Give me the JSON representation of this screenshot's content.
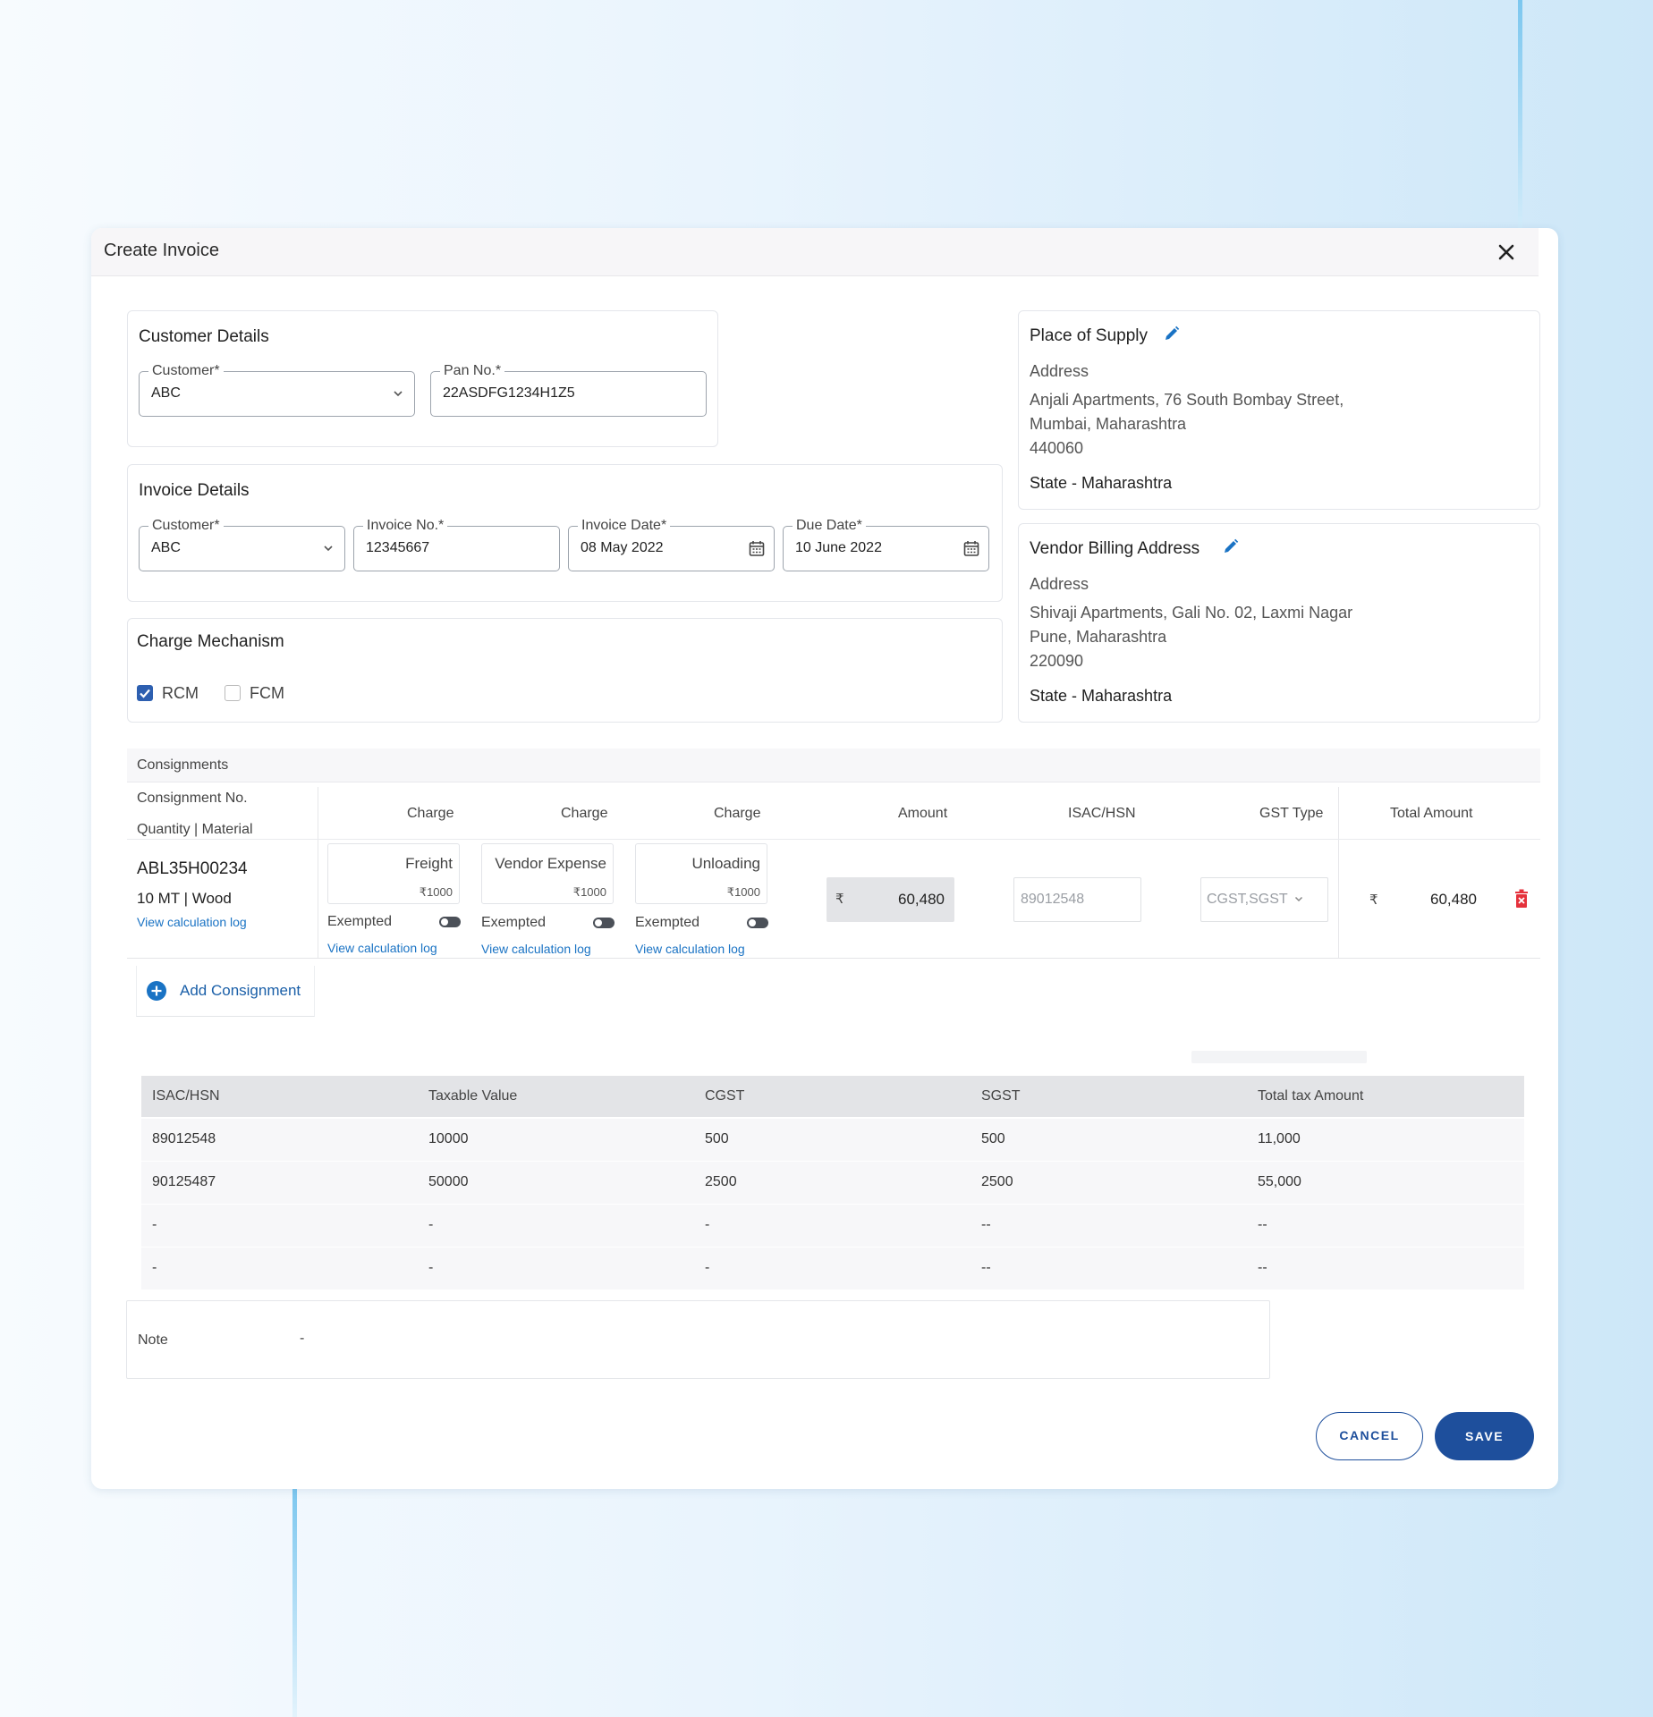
{
  "modal": {
    "title": "Create Invoice"
  },
  "customer_details": {
    "title": "Customer Details",
    "customer_label": "Customer*",
    "customer_value": "ABC",
    "pan_label": "Pan No.*",
    "pan_value": "22ASDFG1234H1Z5"
  },
  "invoice_details": {
    "title": "Invoice Details",
    "customer_label": "Customer*",
    "customer_value": "ABC",
    "invoice_no_label": "Invoice No.*",
    "invoice_no_value": "12345667",
    "invoice_date_label": "Invoice Date*",
    "invoice_date_value": "08 May 2022",
    "due_date_label": "Due Date*",
    "due_date_value": "10 June 2022"
  },
  "charge_mechanism": {
    "title": "Charge Mechanism",
    "options": [
      {
        "label": "RCM",
        "checked": true
      },
      {
        "label": "FCM",
        "checked": false
      }
    ]
  },
  "place_of_supply": {
    "title": "Place of Supply",
    "address_label": "Address",
    "lines": [
      "Anjali Apartments, 76 South Bombay Street,",
      "Mumbai, Maharashtra",
      "440060"
    ],
    "state": "State - Maharashtra"
  },
  "vendor_billing": {
    "title": "Vendor Billing Address",
    "address_label": "Address",
    "lines": [
      "Shivaji Apartments, Gali No. 02, Laxmi Nagar",
      "Pune, Maharashtra",
      "220090"
    ],
    "state": "State - Maharashtra"
  },
  "consignments": {
    "section_label": "Consignments",
    "headers": {
      "consignment_no": "Consignment No.",
      "qty_material": "Quantity | Material",
      "charge": "Charge",
      "amount": "Amount",
      "isac_hsn": "ISAC/HSN",
      "gst_type": "GST Type",
      "total_amount": "Total Amount"
    },
    "row": {
      "consignment_no": "ABL35H00234",
      "qty_material": "10 MT | Wood",
      "calc_log": "View calculation log",
      "charges": [
        {
          "name": "Freight",
          "amount": "₹1000",
          "exempt_label": "Exempted",
          "log": "View calculation log"
        },
        {
          "name": "Vendor Expense",
          "amount": "₹1000",
          "exempt_label": "Exempted",
          "log": "View calculation log"
        },
        {
          "name": "Unloading",
          "amount": "₹1000",
          "exempt_label": "Exempted",
          "log": "View calculation log"
        }
      ],
      "currency": "₹",
      "amount": "60,480",
      "isac_placeholder": "89012548",
      "gst_type": "CGST,SGST",
      "total_currency": "₹",
      "total_amount": "60,480"
    },
    "add_label": "Add Consignment"
  },
  "tax_table": {
    "headers": [
      "ISAC/HSN",
      "Taxable Value",
      "CGST",
      "SGST",
      "Total tax Amount"
    ],
    "rows": [
      [
        "89012548",
        "10000",
        "500",
        "500",
        "11,000"
      ],
      [
        "90125487",
        "50000",
        "2500",
        "2500",
        "55,000"
      ],
      [
        "-",
        "-",
        "-",
        "--",
        "--"
      ],
      [
        "-",
        "-",
        "-",
        "--",
        "--"
      ]
    ]
  },
  "note": {
    "label": "Note",
    "value": "-"
  },
  "actions": {
    "cancel": "CANCEL",
    "save": "SAVE"
  },
  "colors": {
    "primary": "#1e4f9c",
    "link": "#1a73c4",
    "checkbox": "#2d5fb0",
    "delete": "#e5323c"
  }
}
